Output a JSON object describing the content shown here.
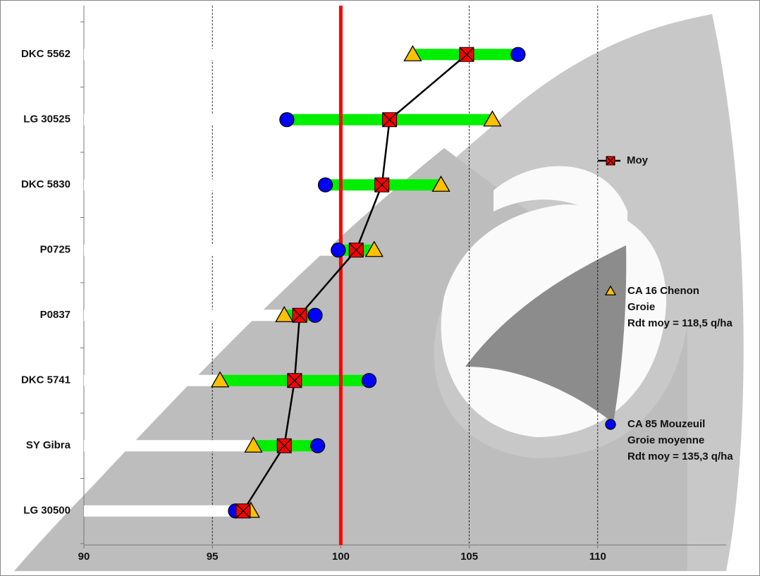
{
  "chart_data": {
    "type": "range-dot",
    "categories": [
      "DKC 5562",
      "LG 30525",
      "DKC 5830",
      "P0725",
      "P0837",
      "DKC 5741",
      "SY Gibra",
      "LG 30500"
    ],
    "series": [
      {
        "name": [
          "Moy"
        ],
        "color": "#ff0000",
        "line_color": "#000000",
        "marker": "square-x",
        "values": [
          104.9,
          101.9,
          101.6,
          100.6,
          98.4,
          98.2,
          97.8,
          96.2
        ]
      },
      {
        "name": [
          "CA 16 Chenon",
          "Groie",
          "Rdt moy = 118,5 q/ha"
        ],
        "color": "#ffc000",
        "marker": "triangle",
        "values": [
          102.8,
          105.9,
          103.9,
          101.3,
          97.8,
          95.3,
          96.6,
          96.5
        ]
      },
      {
        "name": [
          "CA 85 Mouzeuil",
          "Groie moyenne",
          "Rdt moy = 135,3 q/ha"
        ],
        "color": "#0000ff",
        "marker": "circle",
        "values": [
          106.9,
          97.9,
          99.4,
          99.9,
          99.0,
          101.1,
          99.1,
          95.9
        ]
      }
    ],
    "range_color": "#00ee00",
    "reference_x": 100,
    "reference_color": "#ff0000",
    "xlim": [
      90,
      115
    ],
    "xticks": [
      90,
      95,
      100,
      105,
      110
    ],
    "grid": true
  }
}
